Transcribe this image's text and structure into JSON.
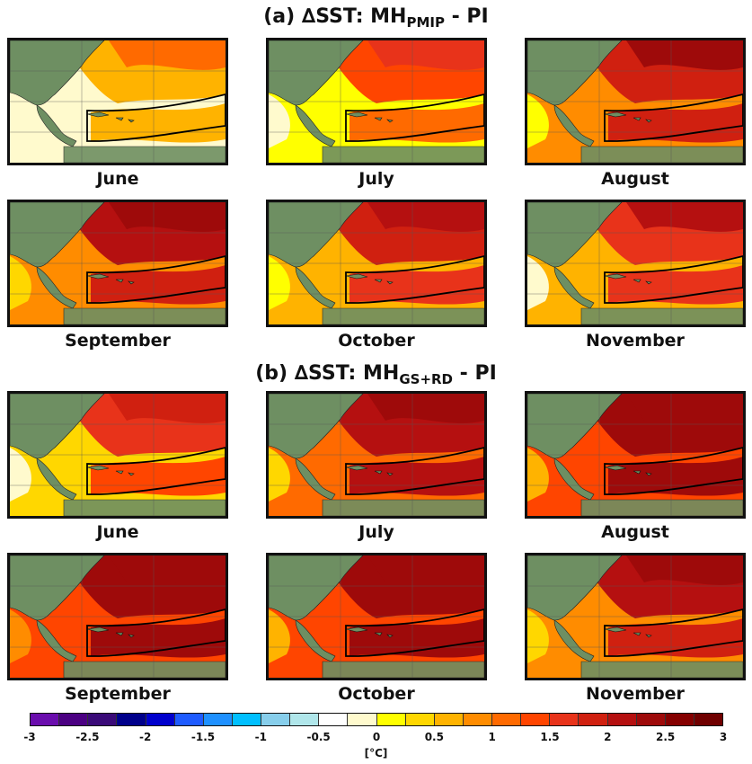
{
  "sections": [
    {
      "title_prefix": "(a) ∆SST: MH",
      "title_sub": "PMIP",
      "title_suffix": " - PI",
      "panels": [
        {
          "month": "June",
          "level": 0.2
        },
        {
          "month": "July",
          "level": 0.45
        },
        {
          "month": "August",
          "level": 0.7
        },
        {
          "month": "September",
          "level": 0.75
        },
        {
          "month": "October",
          "level": 0.65
        },
        {
          "month": "November",
          "level": 0.6
        }
      ]
    },
    {
      "title_prefix": "(b) ∆SST: MH",
      "title_sub": "GS+RD",
      "title_suffix": " - PI",
      "panels": [
        {
          "month": "June",
          "level": 0.55
        },
        {
          "month": "July",
          "level": 0.8
        },
        {
          "month": "August",
          "level": 0.9
        },
        {
          "month": "September",
          "level": 0.95
        },
        {
          "month": "October",
          "level": 0.9
        },
        {
          "month": "November",
          "level": 0.75
        }
      ]
    }
  ],
  "colorbar": {
    "ticks": [
      "-3",
      "-2.5",
      "-2",
      "-1.5",
      "-1",
      "-0.5",
      "0",
      "0.5",
      "1",
      "1.5",
      "2",
      "2.5",
      "3"
    ],
    "unit": "[°C]",
    "colors": [
      "#6a0dad",
      "#4b0082",
      "#3a0a78",
      "#00008b",
      "#0000cd",
      "#1e5bff",
      "#1e90ff",
      "#00bfff",
      "#87ceeb",
      "#b0e6ea",
      "#ffffff",
      "#fffacd",
      "#ffff00",
      "#ffd700",
      "#ffb300",
      "#ff8c00",
      "#ff6a00",
      "#ff4500",
      "#e8331a",
      "#d02010",
      "#b51010",
      "#9e0a0a",
      "#850000",
      "#700000"
    ]
  },
  "land_color": "#6e8f62"
}
